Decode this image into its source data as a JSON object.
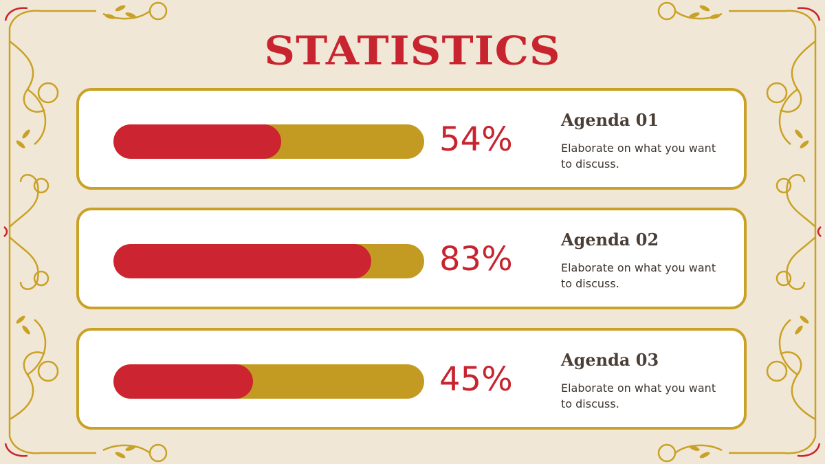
{
  "title": "STATISTICS",
  "colors": {
    "background": "#f1e7d6",
    "accent_red": "#c8242f",
    "accent_gold": "#c49b22",
    "card_border": "#c9a125",
    "text_dark": "#4a3f37"
  },
  "items": [
    {
      "percent_label": "54%",
      "progress": 0.54,
      "title": "Agenda 01",
      "description": "Elaborate on what you want to discuss."
    },
    {
      "percent_label": "83%",
      "progress": 0.83,
      "title": "Agenda 02",
      "description": "Elaborate on what you want to discuss."
    },
    {
      "percent_label": "45%",
      "progress": 0.45,
      "title": "Agenda 03",
      "description": "Elaborate on what you want to discuss."
    }
  ]
}
